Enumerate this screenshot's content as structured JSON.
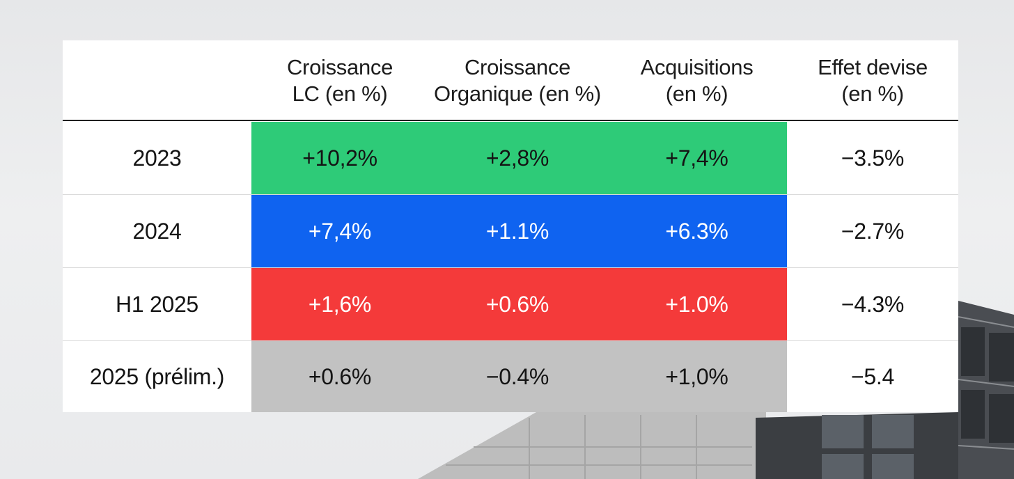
{
  "table": {
    "headers": [
      "",
      "Croissance\nLC (en %)",
      "Croissance\nOrganique (en %)",
      "Acquisitions\n(en %)",
      "Effet devise\n(en %)"
    ],
    "rows": [
      {
        "label": "2023",
        "lc": "+10,2%",
        "organique": "+2,8%",
        "acquisitions": "+7,4%",
        "devise": "−3.5%",
        "color": "#2ecb78"
      },
      {
        "label": "2024",
        "lc": "+7,4%",
        "organique": "+1.1%",
        "acquisitions": "+6.3%",
        "devise": "−2.7%",
        "color": "#0f63f0"
      },
      {
        "label": "H1 2025",
        "lc": "+1,6%",
        "organique": "+0.6%",
        "acquisitions": "+1.0%",
        "devise": "−4.3%",
        "color": "#f43a3a"
      },
      {
        "label": "2025 (prélim.)",
        "lc": "+0.6%",
        "organique": "−0.4%",
        "acquisitions": "+1,0%",
        "devise": "−5.4",
        "color": "#c2c2c2"
      }
    ]
  }
}
